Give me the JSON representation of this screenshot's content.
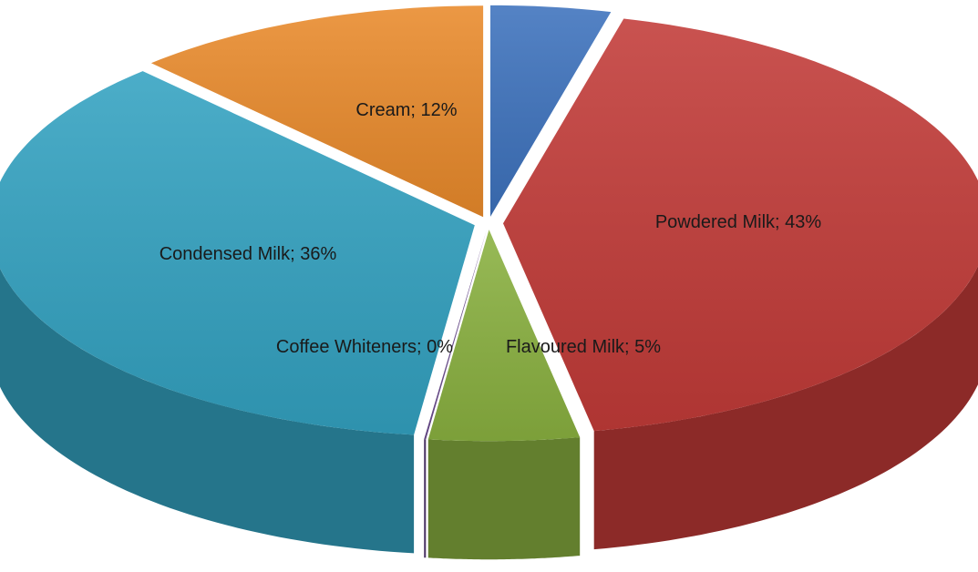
{
  "chart_data": {
    "type": "pie",
    "style": "3d-exploded",
    "slices": [
      {
        "label": "",
        "value": 4,
        "color": "#3d72bd"
      },
      {
        "label": "Powdered Milk; 43%",
        "value": 43,
        "color": "#c23b38"
      },
      {
        "label": "Flavoured Milk; 5%",
        "value": 5,
        "color": "#8ab140"
      },
      {
        "label": "Coffee Whiteners; 0%",
        "value": 0,
        "color": "#6b4c8f"
      },
      {
        "label": "Condensed Milk; 36%",
        "value": 36,
        "color": "#33a2c1"
      },
      {
        "label": "Cream; 12%",
        "value": 12,
        "color": "#e98a2b"
      }
    ]
  }
}
